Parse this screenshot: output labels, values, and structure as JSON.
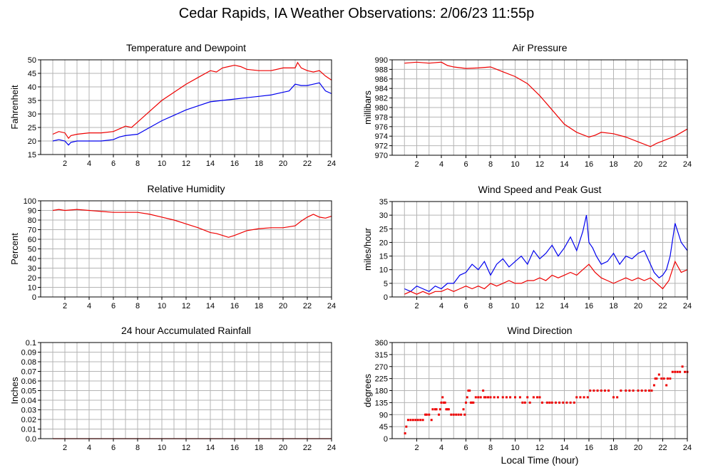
{
  "title": "Cedar Rapids, IA Weather Observations: 2/06/23 11:55p",
  "x_axis_label": "Local Time (hour)",
  "chart_data": [
    {
      "id": "temp",
      "type": "line",
      "title": "Temperature and Dewpoint",
      "ylabel": "Fahrenheit",
      "xlim": [
        0,
        24
      ],
      "ylim": [
        15,
        50
      ],
      "xticks": [
        2,
        4,
        6,
        8,
        10,
        12,
        14,
        16,
        18,
        20,
        22,
        24
      ],
      "yticks": [
        15,
        20,
        25,
        30,
        35,
        40,
        45,
        50
      ],
      "grid": true,
      "series": [
        {
          "color": "#ee0000",
          "x": [
            1,
            1.5,
            2,
            2.3,
            2.5,
            3,
            4,
            5,
            6,
            6.5,
            7,
            7.5,
            8,
            9,
            10,
            11,
            12,
            13,
            14,
            14.5,
            15,
            15.5,
            16,
            16.5,
            17,
            18,
            19,
            20,
            20.5,
            21,
            21.2,
            21.5,
            22,
            22.5,
            23,
            23.5,
            24
          ],
          "y": [
            22.5,
            23.5,
            23,
            21,
            22,
            22.5,
            23,
            23,
            23.5,
            24.5,
            25.5,
            25,
            27,
            31,
            35,
            38,
            41,
            43.5,
            46,
            45.5,
            47,
            47.5,
            48,
            47.5,
            46.5,
            46,
            46,
            47,
            47,
            47,
            49,
            47,
            46,
            45.5,
            46,
            44,
            42.5
          ]
        },
        {
          "color": "#0000ee",
          "x": [
            1,
            1.5,
            2,
            2.3,
            2.5,
            3,
            4,
            5,
            6,
            6.5,
            7,
            8,
            9,
            10,
            11,
            12,
            13,
            14,
            15,
            16,
            17,
            18,
            19,
            20,
            20.5,
            21,
            21.5,
            22,
            22.5,
            23,
            23.5,
            24
          ],
          "y": [
            20,
            20.5,
            20,
            18.5,
            19.5,
            20,
            20,
            20,
            20.5,
            21.5,
            22,
            22.5,
            25,
            27.5,
            29.5,
            31.5,
            33,
            34.5,
            35,
            35.5,
            36,
            36.5,
            37,
            38,
            38.5,
            41,
            40.5,
            40.5,
            41,
            41.5,
            38.5,
            37.5
          ]
        }
      ]
    },
    {
      "id": "pressure",
      "type": "line",
      "title": "Air Pressure",
      "ylabel": "millibars",
      "xlim": [
        0,
        24
      ],
      "ylim": [
        970,
        990
      ],
      "xticks": [
        2,
        4,
        6,
        8,
        10,
        12,
        14,
        16,
        18,
        20,
        22,
        24
      ],
      "yticks": [
        970,
        972,
        974,
        976,
        978,
        980,
        982,
        984,
        986,
        988,
        990
      ],
      "grid": true,
      "series": [
        {
          "color": "#ee0000",
          "x": [
            1,
            2,
            3,
            4,
            4.5,
            5,
            6,
            7,
            8,
            9,
            10,
            11,
            12,
            13,
            14,
            15,
            16,
            16.5,
            17,
            18,
            19,
            20,
            21,
            21.5,
            22,
            22.5,
            23,
            24
          ],
          "y": [
            989.3,
            989.5,
            989.3,
            989.5,
            988.8,
            988.5,
            988.2,
            988.3,
            988.5,
            987.5,
            986.5,
            985,
            982.5,
            979.5,
            976.5,
            974.8,
            973.8,
            974.2,
            974.8,
            974.5,
            973.8,
            972.8,
            971.8,
            972.5,
            973,
            973.5,
            974,
            975.5
          ]
        }
      ]
    },
    {
      "id": "humidity",
      "type": "line",
      "title": "Relative Humidity",
      "ylabel": "Percent",
      "xlim": [
        0,
        24
      ],
      "ylim": [
        0,
        100
      ],
      "xticks": [
        2,
        4,
        6,
        8,
        10,
        12,
        14,
        16,
        18,
        20,
        22,
        24
      ],
      "yticks": [
        0,
        10,
        20,
        30,
        40,
        50,
        60,
        70,
        80,
        90,
        100
      ],
      "grid": true,
      "series": [
        {
          "color": "#ee0000",
          "x": [
            1,
            1.5,
            2,
            3,
            4,
            5,
            6,
            7,
            8,
            9,
            10,
            11,
            12,
            13,
            14,
            14.5,
            15,
            15.5,
            16,
            17,
            18,
            19,
            20,
            21,
            21.5,
            22,
            22.5,
            23,
            23.5,
            24
          ],
          "y": [
            90,
            91,
            90,
            91,
            90,
            89,
            88,
            88,
            88,
            86,
            83,
            80,
            76,
            72,
            67,
            66,
            64,
            62,
            64,
            69,
            71,
            72,
            72,
            74,
            79,
            83,
            86,
            83,
            82,
            84
          ]
        }
      ]
    },
    {
      "id": "wind",
      "type": "line",
      "title": "Wind Speed and Peak Gust",
      "ylabel": "miles/hour",
      "xlim": [
        0,
        24
      ],
      "ylim": [
        0,
        35
      ],
      "xticks": [
        2,
        4,
        6,
        8,
        10,
        12,
        14,
        16,
        18,
        20,
        22,
        24
      ],
      "yticks": [
        0,
        5,
        10,
        15,
        20,
        25,
        30,
        35
      ],
      "grid": true,
      "series": [
        {
          "color": "#0000ee",
          "x": [
            1,
            1.5,
            2,
            2.5,
            3,
            3.5,
            4,
            4.5,
            5,
            5.5,
            6,
            6.5,
            7,
            7.5,
            8,
            8.5,
            9,
            9.5,
            10,
            10.5,
            11,
            11.5,
            12,
            12.5,
            13,
            13.5,
            14,
            14.5,
            15,
            15.5,
            15.8,
            16,
            16.3,
            16.6,
            17,
            17.5,
            18,
            18.5,
            19,
            19.5,
            20,
            20.5,
            21,
            21.3,
            21.7,
            22,
            22.3,
            22.6,
            23,
            23.5,
            24
          ],
          "y": [
            3,
            2,
            4,
            3,
            2,
            4,
            3,
            5,
            5,
            8,
            9,
            12,
            10,
            13,
            8,
            12,
            14,
            11,
            13,
            15,
            12,
            17,
            14,
            16,
            19,
            15,
            18,
            22,
            17,
            24,
            30,
            20,
            18,
            15,
            12,
            13,
            16,
            12,
            15,
            14,
            16,
            17,
            12,
            9,
            7,
            8,
            10,
            15,
            27,
            20,
            17
          ]
        },
        {
          "color": "#ee0000",
          "x": [
            1,
            1.5,
            2,
            2.5,
            3,
            3.5,
            4,
            4.5,
            5,
            5.5,
            6,
            6.5,
            7,
            7.5,
            8,
            8.5,
            9,
            9.5,
            10,
            10.5,
            11,
            11.5,
            12,
            12.5,
            13,
            13.5,
            14,
            14.5,
            15,
            15.5,
            16,
            16.5,
            17,
            17.5,
            18,
            18.5,
            19,
            19.5,
            20,
            20.5,
            21,
            21.5,
            22,
            22.5,
            23,
            23.5,
            24
          ],
          "y": [
            1,
            2,
            1,
            2,
            1,
            2,
            2,
            3,
            2,
            3,
            4,
            3,
            4,
            3,
            5,
            4,
            5,
            6,
            5,
            5,
            6,
            6,
            7,
            6,
            8,
            7,
            8,
            9,
            8,
            10,
            12,
            9,
            7,
            6,
            5,
            6,
            7,
            6,
            7,
            6,
            7,
            5,
            3,
            6,
            13,
            9,
            10
          ]
        }
      ]
    },
    {
      "id": "rain",
      "type": "line",
      "title": "24 hour Accumulated Rainfall",
      "ylabel": "Inches",
      "xlim": [
        0,
        24
      ],
      "ylim": [
        0,
        0.1
      ],
      "xticks": [
        2,
        4,
        6,
        8,
        10,
        12,
        14,
        16,
        18,
        20,
        22,
        24
      ],
      "yticks": [
        "0.0",
        "0.01",
        "0.02",
        "0.03",
        "0.04",
        "0.05",
        "0.06",
        "0.07",
        "0.08",
        "0.09",
        "0.1"
      ],
      "grid": true,
      "series": [
        {
          "color": "#ee0000",
          "x": [
            1,
            24
          ],
          "y": [
            0,
            0
          ]
        }
      ]
    },
    {
      "id": "direction",
      "type": "scatter",
      "title": "Wind Direction",
      "ylabel": "degrees",
      "xlim": [
        0,
        24
      ],
      "ylim": [
        0,
        360
      ],
      "xticks": [
        2,
        4,
        6,
        8,
        10,
        12,
        14,
        16,
        18,
        20,
        22,
        24
      ],
      "yticks": [
        0,
        45,
        90,
        135,
        180,
        225,
        270,
        315,
        360
      ],
      "grid": true,
      "series": [
        {
          "color": "#ee0000",
          "x": [
            1.05,
            1.15,
            1.3,
            1.5,
            1.7,
            1.9,
            2.1,
            2.3,
            2.5,
            2.7,
            2.8,
            3.0,
            3.2,
            3.3,
            3.5,
            3.6,
            3.8,
            3.9,
            4.0,
            4.1,
            4.2,
            4.3,
            4.4,
            4.5,
            4.6,
            4.8,
            5.0,
            5.2,
            5.4,
            5.6,
            5.8,
            5.9,
            6.0,
            6.1,
            6.2,
            6.3,
            6.4,
            6.5,
            6.6,
            6.8,
            7.0,
            7.2,
            7.4,
            7.5,
            7.6,
            7.8,
            8.0,
            8.3,
            8.6,
            9.0,
            9.3,
            9.6,
            10.0,
            10.4,
            10.6,
            10.8,
            11.0,
            11.2,
            11.5,
            11.8,
            12.0,
            12.2,
            12.6,
            12.8,
            13.0,
            13.3,
            13.6,
            13.9,
            14.2,
            14.5,
            14.8,
            15.0,
            15.3,
            15.6,
            15.9,
            16.1,
            16.4,
            16.7,
            17.0,
            17.3,
            17.6,
            18.0,
            18.3,
            18.6,
            19.0,
            19.3,
            19.6,
            20.0,
            20.3,
            20.6,
            20.9,
            21.1,
            21.3,
            21.4,
            21.5,
            21.7,
            21.9,
            22.1,
            22.3,
            22.4,
            22.6,
            22.8,
            23.0,
            23.2,
            23.4,
            23.6,
            23.8,
            24.0
          ],
          "y": [
            20,
            45,
            70,
            70,
            70,
            70,
            70,
            70,
            70,
            90,
            90,
            90,
            70,
            110,
            110,
            110,
            90,
            110,
            135,
            155,
            135,
            135,
            110,
            110,
            110,
            90,
            90,
            90,
            90,
            90,
            110,
            90,
            135,
            155,
            180,
            180,
            135,
            135,
            135,
            155,
            155,
            155,
            180,
            155,
            155,
            155,
            155,
            155,
            155,
            155,
            155,
            155,
            155,
            155,
            135,
            135,
            155,
            135,
            155,
            155,
            155,
            135,
            135,
            135,
            135,
            135,
            135,
            135,
            135,
            135,
            135,
            155,
            155,
            155,
            155,
            180,
            180,
            180,
            180,
            180,
            180,
            155,
            155,
            180,
            180,
            180,
            180,
            180,
            180,
            180,
            180,
            180,
            200,
            225,
            225,
            240,
            225,
            225,
            200,
            225,
            225,
            250,
            250,
            250,
            250,
            270,
            250,
            250
          ]
        }
      ]
    }
  ]
}
